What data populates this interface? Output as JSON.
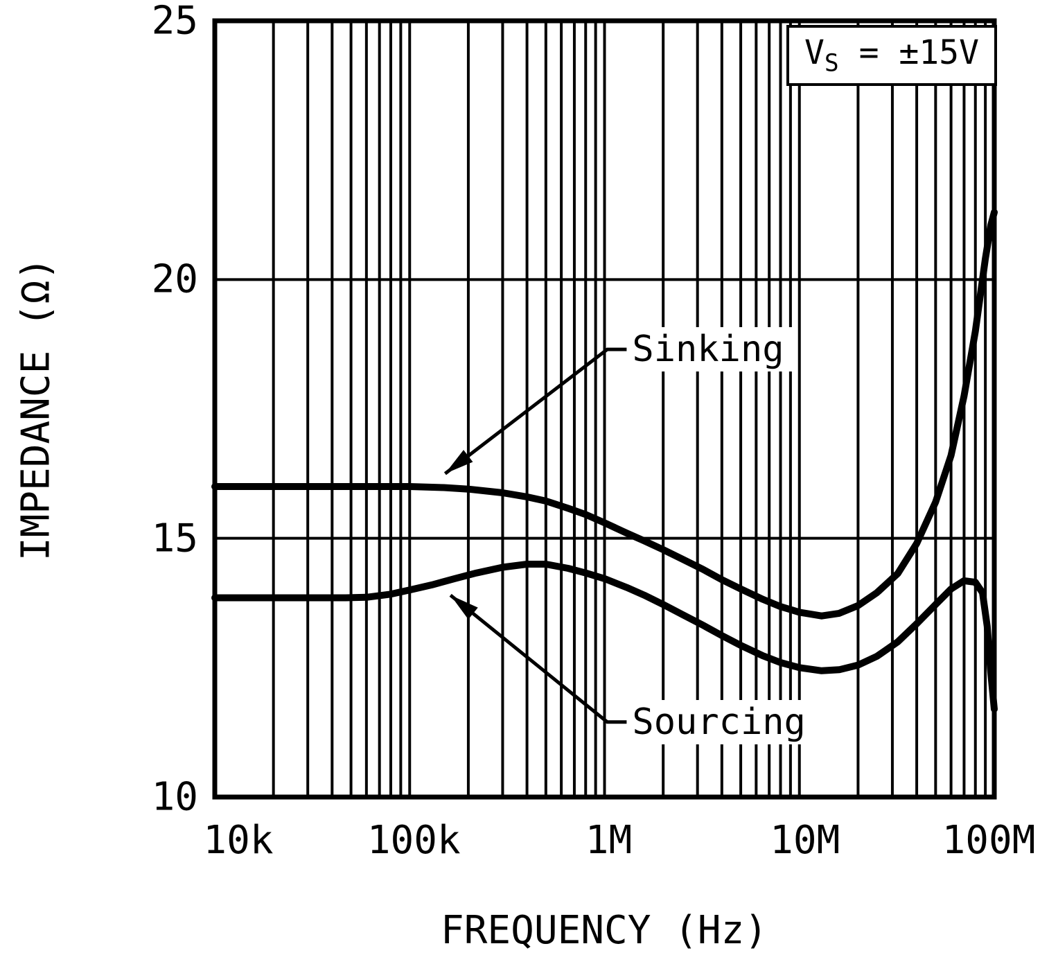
{
  "chart_data": {
    "type": "line",
    "title": "",
    "xlabel": "FREQUENCY (Hz)",
    "ylabel": "IMPEDANCE (Ω)",
    "x_scale": "log",
    "xlim": [
      10000,
      100000000
    ],
    "ylim": [
      10,
      25
    ],
    "grid": true,
    "background": "#ffffff",
    "line_color": "#000000",
    "yticks": [
      10,
      15,
      20,
      25
    ],
    "ytick_labels": [
      "10",
      "15",
      "20",
      "25"
    ],
    "xticks": [
      10000,
      100000,
      1000000,
      10000000,
      100000000
    ],
    "xtick_labels": [
      "10k",
      "100k",
      "1M",
      "10M",
      "100M"
    ],
    "annotation": {
      "prefix": "V",
      "sub": "S",
      "rest": " = ±15V"
    },
    "series": [
      {
        "name": "Sinking",
        "points": [
          [
            10000,
            16.0
          ],
          [
            15000,
            16.0
          ],
          [
            22000,
            16.0
          ],
          [
            33000,
            16.0
          ],
          [
            47000,
            16.0
          ],
          [
            68000,
            16.0
          ],
          [
            100000,
            16.0
          ],
          [
            150000,
            15.98
          ],
          [
            200000,
            15.95
          ],
          [
            300000,
            15.88
          ],
          [
            400000,
            15.8
          ],
          [
            500000,
            15.72
          ],
          [
            650000,
            15.58
          ],
          [
            800000,
            15.46
          ],
          [
            1000000,
            15.3
          ],
          [
            1300000,
            15.1
          ],
          [
            1600000,
            14.95
          ],
          [
            2000000,
            14.78
          ],
          [
            2500000,
            14.6
          ],
          [
            3200000,
            14.4
          ],
          [
            4000000,
            14.2
          ],
          [
            5000000,
            14.02
          ],
          [
            6500000,
            13.82
          ],
          [
            8000000,
            13.68
          ],
          [
            10000000,
            13.57
          ],
          [
            13000000,
            13.5
          ],
          [
            16000000,
            13.55
          ],
          [
            20000000,
            13.7
          ],
          [
            25000000,
            13.95
          ],
          [
            32000000,
            14.32
          ],
          [
            40000000,
            14.9
          ],
          [
            50000000,
            15.7
          ],
          [
            60000000,
            16.6
          ],
          [
            70000000,
            17.75
          ],
          [
            80000000,
            19.0
          ],
          [
            90000000,
            20.4
          ],
          [
            96000000,
            21.05
          ],
          [
            100000000,
            21.3
          ]
        ]
      },
      {
        "name": "Sourcing",
        "points": [
          [
            10000,
            13.85
          ],
          [
            15000,
            13.85
          ],
          [
            22000,
            13.85
          ],
          [
            33000,
            13.85
          ],
          [
            47000,
            13.85
          ],
          [
            60000,
            13.86
          ],
          [
            80000,
            13.92
          ],
          [
            100000,
            14.0
          ],
          [
            130000,
            14.1
          ],
          [
            170000,
            14.22
          ],
          [
            220000,
            14.33
          ],
          [
            300000,
            14.44
          ],
          [
            400000,
            14.5
          ],
          [
            500000,
            14.5
          ],
          [
            650000,
            14.42
          ],
          [
            800000,
            14.33
          ],
          [
            1000000,
            14.22
          ],
          [
            1300000,
            14.05
          ],
          [
            1600000,
            13.9
          ],
          [
            2000000,
            13.72
          ],
          [
            2500000,
            13.53
          ],
          [
            3200000,
            13.32
          ],
          [
            4000000,
            13.12
          ],
          [
            5000000,
            12.93
          ],
          [
            6500000,
            12.73
          ],
          [
            8000000,
            12.6
          ],
          [
            10000000,
            12.5
          ],
          [
            13000000,
            12.44
          ],
          [
            16000000,
            12.46
          ],
          [
            20000000,
            12.55
          ],
          [
            25000000,
            12.72
          ],
          [
            32000000,
            13.0
          ],
          [
            40000000,
            13.35
          ],
          [
            50000000,
            13.72
          ],
          [
            60000000,
            14.02
          ],
          [
            70000000,
            14.18
          ],
          [
            80000000,
            14.15
          ],
          [
            87000000,
            13.95
          ],
          [
            92000000,
            13.3
          ],
          [
            96000000,
            12.4
          ],
          [
            100000000,
            11.7
          ]
        ]
      }
    ],
    "callouts": [
      {
        "label": "Sinking",
        "text_at": [
          1320000,
          18.65
        ],
        "tip": [
          152000,
          16.25
        ]
      },
      {
        "label": "Sourcing",
        "text_at": [
          1320000,
          11.45
        ],
        "tip": [
          162000,
          13.9
        ]
      }
    ]
  }
}
